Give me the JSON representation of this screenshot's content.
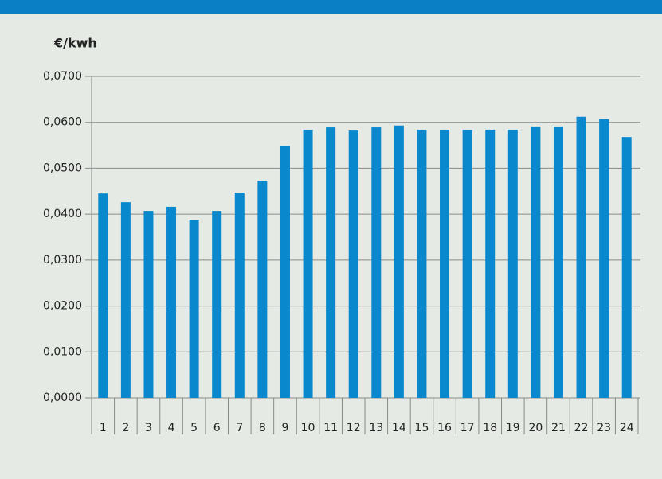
{
  "chart_data": {
    "type": "bar",
    "y_label": "€/kwh",
    "categories": [
      "1",
      "2",
      "3",
      "4",
      "5",
      "6",
      "7",
      "8",
      "9",
      "10",
      "11",
      "12",
      "13",
      "14",
      "15",
      "16",
      "17",
      "18",
      "19",
      "20",
      "21",
      "22",
      "23",
      "24"
    ],
    "values": [
      0.0445,
      0.0426,
      0.0407,
      0.0416,
      0.0388,
      0.0407,
      0.0447,
      0.0473,
      0.0548,
      0.0584,
      0.0589,
      0.0582,
      0.0589,
      0.0593,
      0.0584,
      0.0584,
      0.0584,
      0.0584,
      0.0584,
      0.0591,
      0.0591,
      0.0612,
      0.0607,
      0.0568
    ],
    "color": "#0a88cd",
    "ylim": [
      0,
      0.07
    ],
    "yticks": [
      {
        "value": 0,
        "label": "0,0000"
      },
      {
        "value": 0.01,
        "label": "0,0100"
      },
      {
        "value": 0.02,
        "label": "0,0200"
      },
      {
        "value": 0.03,
        "label": "0,0300"
      },
      {
        "value": 0.04,
        "label": "0,0400"
      },
      {
        "value": 0.05,
        "label": "0,0500"
      },
      {
        "value": 0.06,
        "label": "0,0600"
      },
      {
        "value": 0.07,
        "label": "0,0700"
      }
    ],
    "grid": true
  }
}
